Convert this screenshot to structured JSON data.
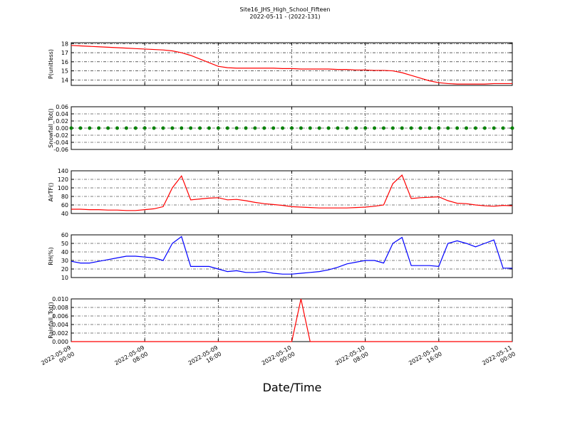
{
  "title": "Site16_JHS_High_School_Fifteen",
  "subtitle": "2022-05-11 - (2022-131)",
  "xlabel": "Date/Time",
  "chart_data": [
    {
      "type": "line",
      "ylabel": "P(unitless)",
      "color": "#ff0000",
      "x": [
        "2022-05-09 00:00",
        "2022-05-09 01:00",
        "2022-05-09 02:00",
        "2022-05-09 03:00",
        "2022-05-09 04:00",
        "2022-05-09 05:00",
        "2022-05-09 06:00",
        "2022-05-09 07:00",
        "2022-05-09 08:00",
        "2022-05-09 09:00",
        "2022-05-09 10:00",
        "2022-05-09 11:00",
        "2022-05-09 12:00",
        "2022-05-09 13:00",
        "2022-05-09 14:00",
        "2022-05-09 15:00",
        "2022-05-09 16:00",
        "2022-05-09 17:00",
        "2022-05-09 18:00",
        "2022-05-09 19:00",
        "2022-05-09 20:00",
        "2022-05-09 21:00",
        "2022-05-09 22:00",
        "2022-05-09 23:00",
        "2022-05-10 00:00",
        "2022-05-10 01:00",
        "2022-05-10 02:00",
        "2022-05-10 03:00",
        "2022-05-10 04:00",
        "2022-05-10 05:00",
        "2022-05-10 06:00",
        "2022-05-10 07:00",
        "2022-05-10 08:00",
        "2022-05-10 09:00",
        "2022-05-10 10:00",
        "2022-05-10 11:00",
        "2022-05-10 12:00",
        "2022-05-10 13:00",
        "2022-05-10 14:00",
        "2022-05-10 15:00",
        "2022-05-10 16:00",
        "2022-05-10 17:00",
        "2022-05-10 18:00",
        "2022-05-10 19:00",
        "2022-05-10 20:00",
        "2022-05-10 21:00",
        "2022-05-10 22:00",
        "2022-05-10 23:00",
        "2022-05-11 00:00"
      ],
      "values": [
        17.8,
        17.75,
        17.7,
        17.65,
        17.6,
        17.55,
        17.5,
        17.45,
        17.4,
        17.35,
        17.3,
        17.2,
        17.0,
        16.7,
        16.3,
        15.9,
        15.5,
        15.35,
        15.3,
        15.3,
        15.3,
        15.3,
        15.3,
        15.25,
        15.25,
        15.2,
        15.2,
        15.2,
        15.2,
        15.15,
        15.15,
        15.1,
        15.1,
        15.05,
        15.05,
        15.0,
        14.8,
        14.5,
        14.2,
        13.9,
        13.7,
        13.6,
        13.55,
        13.55,
        13.55,
        13.55,
        13.6,
        13.6,
        13.6
      ],
      "xlim": [
        "2022-05-09 00:00",
        "2022-05-11 00:00"
      ],
      "xticks": [
        "2022-05-09 00:00",
        "2022-05-09 08:00",
        "2022-05-09 16:00",
        "2022-05-10 00:00",
        "2022-05-10 08:00",
        "2022-05-10 16:00",
        "2022-05-11 00:00"
      ],
      "ylim": [
        13.4,
        18.1
      ],
      "yticks": [
        14,
        15,
        16,
        17,
        18
      ],
      "grid": true
    },
    {
      "type": "scatter",
      "ylabel": "Snowfall_Tot()",
      "color": "#008000",
      "x": [
        "2022-05-09 00:00",
        "2022-05-09 01:00",
        "2022-05-09 02:00",
        "2022-05-09 03:00",
        "2022-05-09 04:00",
        "2022-05-09 05:00",
        "2022-05-09 06:00",
        "2022-05-09 07:00",
        "2022-05-09 08:00",
        "2022-05-09 09:00",
        "2022-05-09 10:00",
        "2022-05-09 11:00",
        "2022-05-09 12:00",
        "2022-05-09 13:00",
        "2022-05-09 14:00",
        "2022-05-09 15:00",
        "2022-05-09 16:00",
        "2022-05-09 17:00",
        "2022-05-09 18:00",
        "2022-05-09 19:00",
        "2022-05-09 20:00",
        "2022-05-09 21:00",
        "2022-05-09 22:00",
        "2022-05-09 23:00",
        "2022-05-10 00:00",
        "2022-05-10 01:00",
        "2022-05-10 02:00",
        "2022-05-10 03:00",
        "2022-05-10 04:00",
        "2022-05-10 05:00",
        "2022-05-10 06:00",
        "2022-05-10 07:00",
        "2022-05-10 08:00",
        "2022-05-10 09:00",
        "2022-05-10 10:00",
        "2022-05-10 11:00",
        "2022-05-10 12:00",
        "2022-05-10 13:00",
        "2022-05-10 14:00",
        "2022-05-10 15:00",
        "2022-05-10 16:00",
        "2022-05-10 17:00",
        "2022-05-10 18:00",
        "2022-05-10 19:00",
        "2022-05-10 20:00",
        "2022-05-10 21:00",
        "2022-05-10 22:00",
        "2022-05-10 23:00",
        "2022-05-11 00:00"
      ],
      "values": [
        0,
        0,
        0,
        0,
        0,
        0,
        0,
        0,
        0,
        0,
        0,
        0,
        0,
        0,
        0,
        0,
        0,
        0,
        0,
        0,
        0,
        0,
        0,
        0,
        0,
        0,
        0,
        0,
        0,
        0,
        0,
        0,
        0,
        0,
        0,
        0,
        0,
        0,
        0,
        0,
        0,
        0,
        0,
        0,
        0,
        0,
        0,
        0,
        0
      ],
      "xlim": [
        "2022-05-09 00:00",
        "2022-05-11 00:00"
      ],
      "xticks": [
        "2022-05-09 00:00",
        "2022-05-09 08:00",
        "2022-05-09 16:00",
        "2022-05-10 00:00",
        "2022-05-10 08:00",
        "2022-05-10 16:00",
        "2022-05-11 00:00"
      ],
      "ylim": [
        -0.06,
        0.06
      ],
      "yticks": [
        -0.06,
        -0.04,
        -0.02,
        {
          "value": 0,
          "label": "0.00"
        },
        0.02,
        0.04,
        0.06
      ],
      "grid": true
    },
    {
      "type": "line",
      "ylabel": "AirTF()",
      "color": "#ff0000",
      "x": [
        "2022-05-09 00:00",
        "2022-05-09 01:00",
        "2022-05-09 02:00",
        "2022-05-09 03:00",
        "2022-05-09 04:00",
        "2022-05-09 05:00",
        "2022-05-09 06:00",
        "2022-05-09 07:00",
        "2022-05-09 08:00",
        "2022-05-09 09:00",
        "2022-05-09 10:00",
        "2022-05-09 11:00",
        "2022-05-09 12:00",
        "2022-05-09 13:00",
        "2022-05-09 14:00",
        "2022-05-09 15:00",
        "2022-05-09 16:00",
        "2022-05-09 17:00",
        "2022-05-09 18:00",
        "2022-05-09 19:00",
        "2022-05-09 20:00",
        "2022-05-09 21:00",
        "2022-05-09 22:00",
        "2022-05-09 23:00",
        "2022-05-10 00:00",
        "2022-05-10 01:00",
        "2022-05-10 02:00",
        "2022-05-10 03:00",
        "2022-05-10 04:00",
        "2022-05-10 05:00",
        "2022-05-10 06:00",
        "2022-05-10 07:00",
        "2022-05-10 08:00",
        "2022-05-10 09:00",
        "2022-05-10 10:00",
        "2022-05-10 11:00",
        "2022-05-10 12:00",
        "2022-05-10 13:00",
        "2022-05-10 14:00",
        "2022-05-10 15:00",
        "2022-05-10 16:00",
        "2022-05-10 17:00",
        "2022-05-10 18:00",
        "2022-05-10 19:00",
        "2022-05-10 20:00",
        "2022-05-10 21:00",
        "2022-05-10 22:00",
        "2022-05-10 23:00",
        "2022-05-11 00:00"
      ],
      "values": [
        50,
        50,
        49,
        49,
        48,
        48,
        47,
        47,
        49,
        51,
        56,
        100,
        128,
        72,
        74,
        76,
        77,
        72,
        73,
        70,
        66,
        63,
        61,
        59,
        56,
        55,
        54,
        53,
        53,
        53,
        53,
        54,
        55,
        57,
        60,
        110,
        130,
        75,
        77,
        78,
        79,
        70,
        64,
        63,
        60,
        58,
        57,
        59,
        58
      ],
      "xlim": [
        "2022-05-09 00:00",
        "2022-05-11 00:00"
      ],
      "xticks": [
        "2022-05-09 00:00",
        "2022-05-09 08:00",
        "2022-05-09 16:00",
        "2022-05-10 00:00",
        "2022-05-10 08:00",
        "2022-05-10 16:00",
        "2022-05-11 00:00"
      ],
      "ylim": [
        40,
        140
      ],
      "yticks": [
        40,
        60,
        80,
        100,
        120,
        140
      ],
      "grid": true
    },
    {
      "type": "line",
      "ylabel": "RH(%)",
      "color": "#0000ff",
      "x": [
        "2022-05-09 00:00",
        "2022-05-09 01:00",
        "2022-05-09 02:00",
        "2022-05-09 03:00",
        "2022-05-09 04:00",
        "2022-05-09 05:00",
        "2022-05-09 06:00",
        "2022-05-09 07:00",
        "2022-05-09 08:00",
        "2022-05-09 09:00",
        "2022-05-09 10:00",
        "2022-05-09 11:00",
        "2022-05-09 12:00",
        "2022-05-09 13:00",
        "2022-05-09 14:00",
        "2022-05-09 15:00",
        "2022-05-09 16:00",
        "2022-05-09 17:00",
        "2022-05-09 18:00",
        "2022-05-09 19:00",
        "2022-05-09 20:00",
        "2022-05-09 21:00",
        "2022-05-09 22:00",
        "2022-05-09 23:00",
        "2022-05-10 00:00",
        "2022-05-10 01:00",
        "2022-05-10 02:00",
        "2022-05-10 03:00",
        "2022-05-10 04:00",
        "2022-05-10 05:00",
        "2022-05-10 06:00",
        "2022-05-10 07:00",
        "2022-05-10 08:00",
        "2022-05-10 09:00",
        "2022-05-10 10:00",
        "2022-05-10 11:00",
        "2022-05-10 12:00",
        "2022-05-10 13:00",
        "2022-05-10 14:00",
        "2022-05-10 15:00",
        "2022-05-10 16:00",
        "2022-05-10 17:00",
        "2022-05-10 18:00",
        "2022-05-10 19:00",
        "2022-05-10 20:00",
        "2022-05-10 21:00",
        "2022-05-10 22:00",
        "2022-05-10 23:00",
        "2022-05-11 00:00"
      ],
      "values": [
        29,
        27,
        27,
        29,
        31,
        33,
        35,
        35,
        34,
        33,
        30,
        50,
        58,
        23,
        23,
        23,
        20,
        17,
        18,
        16,
        16,
        17,
        15,
        14,
        14,
        15,
        16,
        17,
        19,
        22,
        26,
        28,
        30,
        30,
        27,
        50,
        57,
        24,
        24,
        24,
        23,
        50,
        53,
        50,
        46,
        50,
        54,
        21,
        21
      ],
      "xlim": [
        "2022-05-09 00:00",
        "2022-05-11 00:00"
      ],
      "xticks": [
        "2022-05-09 00:00",
        "2022-05-09 08:00",
        "2022-05-09 16:00",
        "2022-05-10 00:00",
        "2022-05-10 08:00",
        "2022-05-10 16:00",
        "2022-05-11 00:00"
      ],
      "ylim": [
        10,
        60
      ],
      "yticks": [
        10,
        20,
        30,
        40,
        50,
        60
      ],
      "grid": true
    },
    {
      "type": "line",
      "ylabel": "Rainfall_Tot()",
      "color": "#ff0000",
      "x": [
        "2022-05-09 00:00",
        "2022-05-09 01:00",
        "2022-05-09 02:00",
        "2022-05-09 03:00",
        "2022-05-09 04:00",
        "2022-05-09 05:00",
        "2022-05-09 06:00",
        "2022-05-09 07:00",
        "2022-05-09 08:00",
        "2022-05-09 09:00",
        "2022-05-09 10:00",
        "2022-05-09 11:00",
        "2022-05-09 12:00",
        "2022-05-09 13:00",
        "2022-05-09 14:00",
        "2022-05-09 15:00",
        "2022-05-09 16:00",
        "2022-05-09 17:00",
        "2022-05-09 18:00",
        "2022-05-09 19:00",
        "2022-05-09 20:00",
        "2022-05-09 21:00",
        "2022-05-09 22:00",
        "2022-05-09 23:00",
        "2022-05-10 00:00",
        "2022-05-10 01:00",
        "2022-05-10 02:00",
        "2022-05-10 03:00",
        "2022-05-10 04:00",
        "2022-05-10 05:00",
        "2022-05-10 06:00",
        "2022-05-10 07:00",
        "2022-05-10 08:00",
        "2022-05-10 09:00",
        "2022-05-10 10:00",
        "2022-05-10 11:00",
        "2022-05-10 12:00",
        "2022-05-10 13:00",
        "2022-05-10 14:00",
        "2022-05-10 15:00",
        "2022-05-10 16:00",
        "2022-05-10 17:00",
        "2022-05-10 18:00",
        "2022-05-10 19:00",
        "2022-05-10 20:00",
        "2022-05-10 21:00",
        "2022-05-10 22:00",
        "2022-05-10 23:00",
        "2022-05-11 00:00"
      ],
      "values": [
        0,
        0,
        0,
        0,
        0,
        0,
        0,
        0,
        0,
        0,
        0,
        0,
        0,
        0,
        0,
        0,
        0,
        0,
        0,
        0,
        0,
        0,
        0,
        0,
        0,
        0.01,
        0,
        0,
        0,
        0,
        0,
        0,
        0,
        0,
        0,
        0,
        0,
        0,
        0,
        0,
        0,
        0,
        0,
        0,
        0,
        0,
        0,
        0,
        0
      ],
      "xlim": [
        "2022-05-09 00:00",
        "2022-05-11 00:00"
      ],
      "xticks": [
        "2022-05-09 00:00",
        "2022-05-09 08:00",
        "2022-05-09 16:00",
        "2022-05-10 00:00",
        "2022-05-10 08:00",
        "2022-05-10 16:00",
        "2022-05-11 00:00"
      ],
      "ylim": [
        0,
        0.01
      ],
      "yticks": [
        {
          "value": 0,
          "label": "0.000"
        },
        {
          "value": 0.002,
          "label": "0.002"
        },
        {
          "value": 0.004,
          "label": "0.004"
        },
        {
          "value": 0.006,
          "label": "0.006"
        },
        {
          "value": 0.008,
          "label": "0.008"
        },
        {
          "value": 0.01,
          "label": "0.010"
        }
      ],
      "grid": true
    }
  ]
}
